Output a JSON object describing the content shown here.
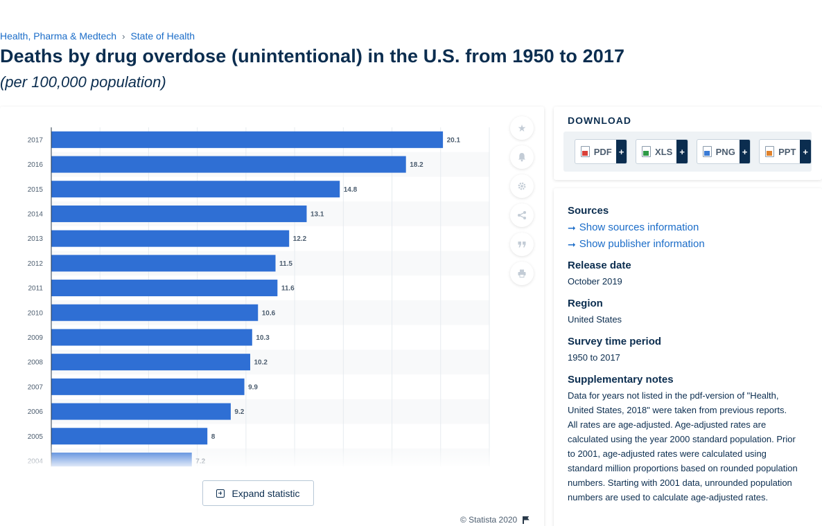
{
  "breadcrumb": {
    "items": [
      "Health, Pharma & Medtech",
      "State of Health"
    ],
    "separator": "›"
  },
  "header": {
    "title": "Deaths by drug overdose (unintentional) in the U.S. from 1950 to 2017",
    "subtitle": "(per 100,000 population)"
  },
  "chart_actions": {
    "expand_label": "Expand statistic",
    "copyright": "© Statista 2020"
  },
  "toolbar": {
    "icons": [
      "star-icon",
      "bell-icon",
      "gear-icon",
      "share-icon",
      "quote-icon",
      "print-icon"
    ]
  },
  "download": {
    "title": "DOWNLOAD",
    "formats": [
      {
        "label": "PDF",
        "plus": "+",
        "color": "#d9413a"
      },
      {
        "label": "XLS",
        "plus": "+",
        "color": "#2f9a47"
      },
      {
        "label": "PNG",
        "plus": "+",
        "color": "#3a7bd5"
      },
      {
        "label": "PPT",
        "plus": "+",
        "color": "#e0822c"
      }
    ]
  },
  "info": {
    "sources_title": "Sources",
    "show_sources": "Show sources information",
    "show_publisher": "Show publisher information",
    "release_date_title": "Release date",
    "release_date": "October 2019",
    "region_title": "Region",
    "region": "United States",
    "survey_period_title": "Survey time period",
    "survey_period": "1950 to 2017",
    "notes_title": "Supplementary notes",
    "note_1": "Data for years not listed in the pdf-version of \"Health, United States, 2018\" were taken from previous reports.",
    "note_2": "All rates are age-adjusted. Age-adjusted rates are calculated using the year 2000 standard population. Prior to 2001, age-adjusted rates were calculated using standard million proportions based on rounded population numbers. Starting with 2001 data, unrounded population numbers are used to calculate age-adjusted rates."
  },
  "colors": {
    "bar": "#2f6fd4",
    "accent": "#1a6cc8",
    "text_dark": "#0b2d4f"
  },
  "chart_data": {
    "type": "bar",
    "orientation": "horizontal",
    "categories": [
      "2017",
      "2016",
      "2015",
      "2014",
      "2013",
      "2012",
      "2011",
      "2010",
      "2009",
      "2008",
      "2007",
      "2006",
      "2005",
      "2004"
    ],
    "values": [
      20.1,
      18.2,
      14.8,
      13.1,
      12.2,
      11.5,
      11.6,
      10.6,
      10.3,
      10.2,
      9.9,
      9.2,
      8,
      7.2
    ],
    "xlim": [
      0,
      22.5
    ],
    "grid": true,
    "legend": "none"
  }
}
